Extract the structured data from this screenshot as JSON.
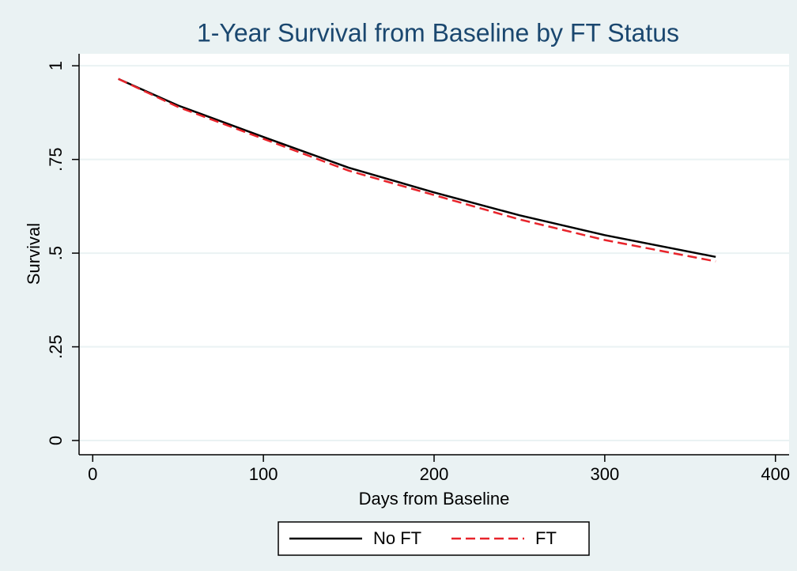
{
  "chart_data": {
    "type": "line",
    "title": "1-Year Survival from Baseline by FT Status",
    "x_label": "Days from Baseline",
    "y_label": "Survival",
    "x": [
      15,
      50,
      100,
      150,
      200,
      250,
      300,
      365
    ],
    "series": [
      {
        "name": "No FT",
        "color": "#000000",
        "dash": "solid",
        "values": [
          0.965,
          0.894,
          0.81,
          0.728,
          0.662,
          0.601,
          0.548,
          0.49
        ]
      },
      {
        "name": "FT",
        "color": "#e8242b",
        "dash": "dashed",
        "values": [
          0.965,
          0.89,
          0.805,
          0.72,
          0.655,
          0.59,
          0.535,
          0.478
        ]
      }
    ],
    "xlim": [
      -8,
      408
    ],
    "ylim": [
      -0.038,
      1.032
    ],
    "xticks": [
      0,
      100,
      200,
      300,
      400
    ],
    "yticks": [
      0,
      {
        "value": 0.25,
        "label": ".25"
      },
      {
        "value": 0.5,
        "label": ".5"
      },
      {
        "value": 0.75,
        "label": ".75"
      },
      1
    ],
    "grid": true,
    "legend_position": "bottom"
  }
}
